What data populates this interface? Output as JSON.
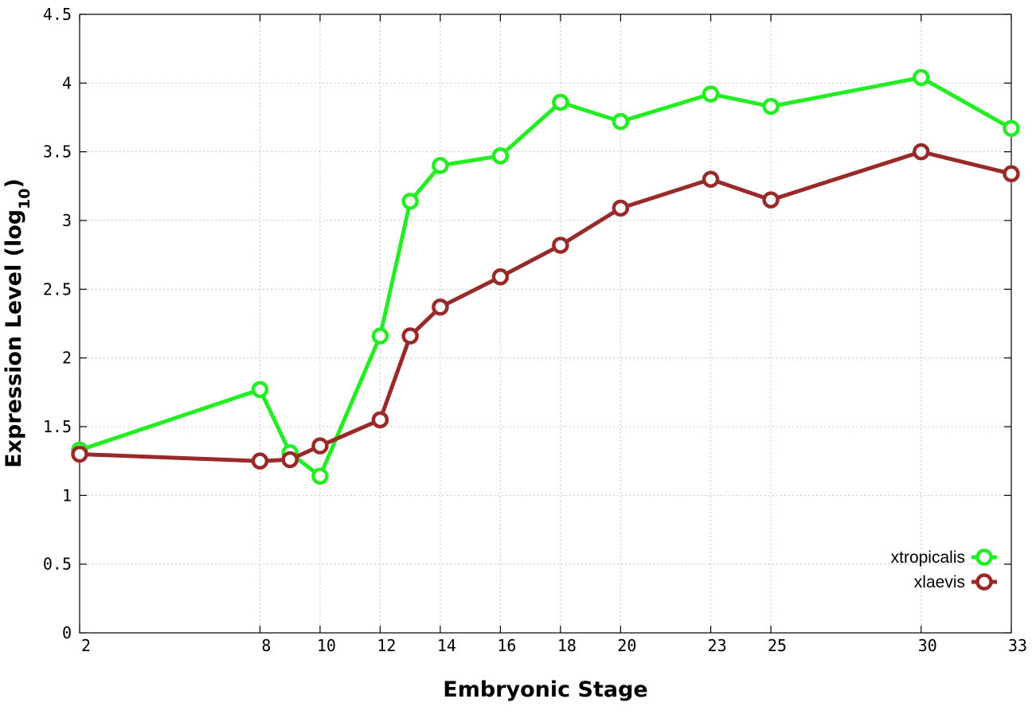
{
  "chart_data": {
    "type": "line",
    "xlabel": "Embryonic Stage",
    "ylabel_main": "Expression Level (log",
    "ylabel_sub": "10",
    "ylabel_close": ")",
    "xlim": [
      2,
      33
    ],
    "ylim": [
      0,
      4.5
    ],
    "x_ticks": [
      2,
      8,
      10,
      12,
      14,
      16,
      18,
      20,
      23,
      25,
      30,
      33
    ],
    "x_tick_labels": [
      "2",
      "8",
      "10",
      "12",
      "14",
      "16",
      "18",
      "20",
      "23",
      "25",
      "30",
      "33"
    ],
    "y_ticks": [
      0,
      0.5,
      1,
      1.5,
      2,
      2.5,
      3,
      3.5,
      4,
      4.5
    ],
    "y_tick_labels": [
      "0",
      "0.5",
      "1",
      "1.5",
      "2",
      "2.5",
      "3",
      "3.5",
      "4",
      "4.5"
    ],
    "grid": true,
    "legend_position": "bottom-right",
    "series": [
      {
        "name": "xtropicalis",
        "color": "#22ee22",
        "x": [
          2,
          8,
          9,
          10,
          12,
          13,
          14,
          16,
          18,
          20,
          23,
          25,
          30,
          33
        ],
        "y": [
          1.33,
          1.77,
          1.31,
          1.14,
          2.16,
          3.14,
          3.4,
          3.47,
          3.86,
          3.72,
          3.92,
          3.83,
          4.04,
          3.67
        ]
      },
      {
        "name": "xlaevis",
        "color": "#992a2a",
        "x": [
          2,
          8,
          9,
          10,
          12,
          13,
          14,
          16,
          18,
          20,
          23,
          25,
          30,
          33
        ],
        "y": [
          1.3,
          1.25,
          1.26,
          1.36,
          1.55,
          2.16,
          2.37,
          2.59,
          2.82,
          3.09,
          3.3,
          3.15,
          3.5,
          3.34
        ]
      }
    ]
  }
}
